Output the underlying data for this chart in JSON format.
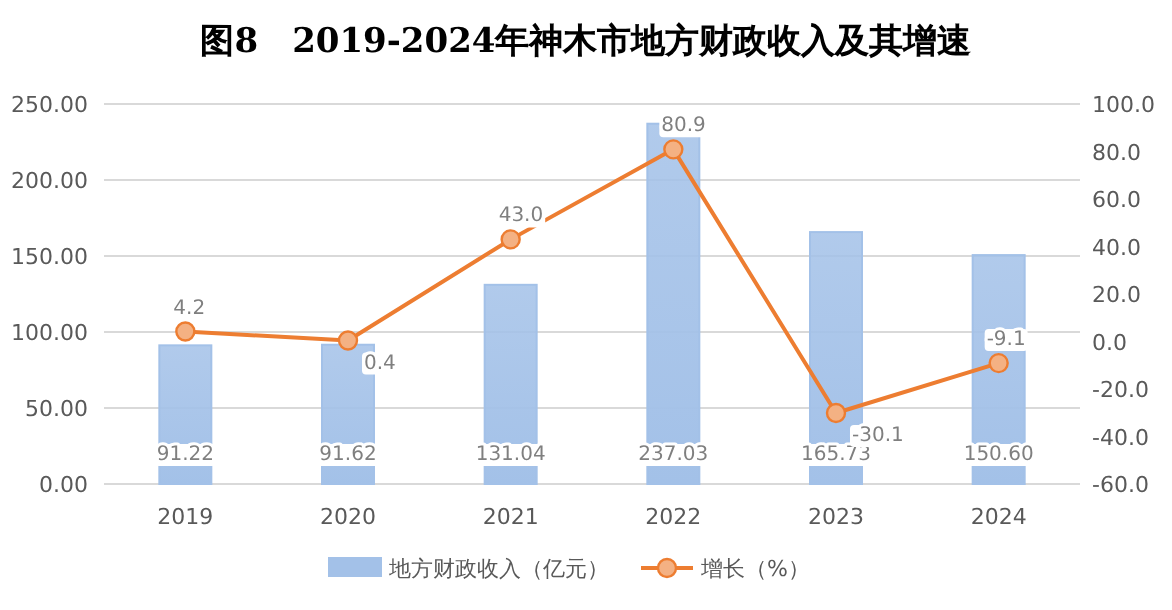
{
  "chart_data": {
    "type": "bar",
    "title": "图8　2019-2024年神木市地方财政收入及其增速",
    "categories": [
      "2019",
      "2020",
      "2021",
      "2022",
      "2023",
      "2024"
    ],
    "series": [
      {
        "name": "地方财政收入（亿元）",
        "color": "#a3c1e8",
        "values": [
          91.22,
          91.62,
          131.04,
          237.03,
          165.73,
          150.6
        ],
        "value_labels": [
          "91.22",
          "91.62",
          "131.04",
          "237.03",
          "165.73",
          "150.60"
        ]
      },
      {
        "name": "增长（%）",
        "type": "line",
        "axis": "y2",
        "color": "#ed7d31",
        "marker": "circle",
        "values": [
          4.2,
          0.4,
          43.0,
          80.9,
          -30.1,
          -9.1
        ],
        "value_labels": [
          "4.2",
          "0.4",
          "43.0",
          "80.9",
          "-30.1",
          "-9.1"
        ]
      }
    ],
    "ylim": [
      0,
      250
    ],
    "yticks": [
      {
        "value": 0,
        "label": "0.00"
      },
      {
        "value": 50,
        "label": "50.00"
      },
      {
        "value": 100,
        "label": "100.00"
      },
      {
        "value": 150,
        "label": "150.00"
      },
      {
        "value": 200,
        "label": "200.00"
      },
      {
        "value": 250,
        "label": "250.00"
      }
    ],
    "y2lim": [
      -60,
      100
    ],
    "y2ticks": [
      {
        "value": -60,
        "label": "-60.0"
      },
      {
        "value": -40,
        "label": "-40.0"
      },
      {
        "value": -20,
        "label": "-20.0"
      },
      {
        "value": 0,
        "label": "0.0"
      },
      {
        "value": 20,
        "label": "20.0"
      },
      {
        "value": 40,
        "label": "40.0"
      },
      {
        "value": 60,
        "label": "60.0"
      },
      {
        "value": 80,
        "label": "80.0"
      },
      {
        "value": 100,
        "label": "100.0"
      }
    ],
    "grid": "y",
    "legend": "bottom"
  }
}
